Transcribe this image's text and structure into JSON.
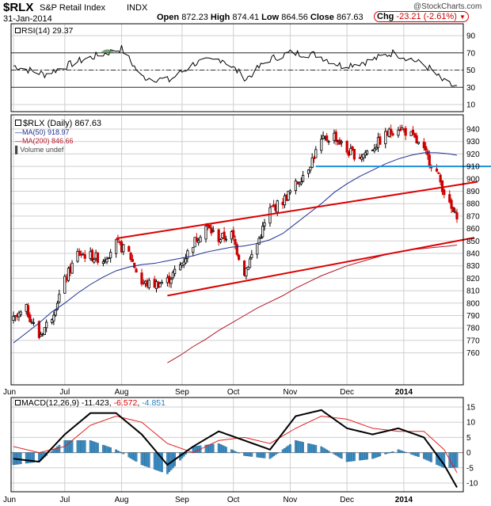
{
  "header": {
    "symbol": "$RLX",
    "name": "S&P Retail Index",
    "exchange": "INDX",
    "date": "31-Jan-2014",
    "open_label": "Open",
    "open": "872.23",
    "high_label": "High",
    "high": "874.41",
    "low_label": "Low",
    "low": "864.56",
    "close_label": "Close",
    "close": "867.63",
    "chg_label": "Chg",
    "chg": "-23.21 (-2.61%)",
    "watermark": "@StockCharts.com"
  },
  "colors": {
    "candle": "#000000",
    "down_candle": "#cc0000",
    "ma50": "#1f2f8f",
    "ma200": "#b0182a",
    "channel": "#dd0000",
    "support": "#1e90d8",
    "macd": "#000000",
    "signal": "#e02020",
    "histogram": "#3f8fc4",
    "grid": "#cfcfcf",
    "rsi_fill": "#5a8a5a"
  },
  "chart_data": [
    {
      "type": "line",
      "panel": "rsi",
      "label": "RSI(14) 29.37",
      "ylim": [
        0,
        100
      ],
      "tick_labels": [
        "90",
        "70",
        "50",
        "30",
        "10"
      ],
      "ticks": [
        90,
        70,
        50,
        30,
        10
      ],
      "reference_lines": [
        70,
        50,
        30
      ],
      "x": [
        "2013-06-03",
        "2013-06-20",
        "2013-07-08",
        "2013-07-24",
        "2013-08-01",
        "2013-08-12",
        "2013-08-27",
        "2013-09-10",
        "2013-09-25",
        "2013-10-08",
        "2013-10-20",
        "2013-11-01",
        "2013-11-15",
        "2013-11-29",
        "2013-12-13",
        "2013-12-27",
        "2014-01-06",
        "2014-01-16",
        "2014-01-24",
        "2014-01-31"
      ],
      "values": [
        55,
        45,
        60,
        70,
        75,
        42,
        38,
        58,
        63,
        40,
        62,
        70,
        68,
        55,
        60,
        70,
        63,
        52,
        36,
        29.37
      ]
    },
    {
      "type": "candlestick",
      "panel": "price",
      "label": "$RLX (Daily) 867.63",
      "ylim": [
        752,
        950
      ],
      "tick_labels": [
        "940",
        "930",
        "920",
        "910",
        "900",
        "890",
        "880",
        "870",
        "860",
        "850",
        "840",
        "830",
        "820",
        "810",
        "800",
        "790",
        "780",
        "770",
        "760"
      ],
      "ticks": [
        940,
        930,
        920,
        910,
        900,
        890,
        880,
        870,
        860,
        850,
        840,
        830,
        820,
        810,
        800,
        790,
        780,
        770,
        760
      ],
      "x_ticks": [
        "Jun",
        "Jul",
        "Aug",
        "Sep",
        "Oct",
        "Nov",
        "Dec",
        "2014"
      ],
      "x": [
        "2013-06-03",
        "2013-06-10",
        "2013-06-17",
        "2013-06-24",
        "2013-07-01",
        "2013-07-08",
        "2013-07-15",
        "2013-07-22",
        "2013-07-29",
        "2013-08-05",
        "2013-08-12",
        "2013-08-19",
        "2013-08-26",
        "2013-09-02",
        "2013-09-09",
        "2013-09-16",
        "2013-09-23",
        "2013-09-30",
        "2013-10-07",
        "2013-10-14",
        "2013-10-21",
        "2013-10-28",
        "2013-11-04",
        "2013-11-11",
        "2013-11-18",
        "2013-11-25",
        "2013-12-02",
        "2013-12-09",
        "2013-12-16",
        "2013-12-23",
        "2013-12-30",
        "2014-01-06",
        "2014-01-13",
        "2014-01-20",
        "2014-01-27",
        "2014-01-31"
      ],
      "close": [
        786,
        795,
        773,
        790,
        818,
        840,
        838,
        835,
        848,
        840,
        816,
        815,
        818,
        830,
        848,
        862,
        852,
        855,
        825,
        848,
        875,
        882,
        895,
        910,
        930,
        935,
        922,
        918,
        925,
        935,
        942,
        935,
        922,
        905,
        878,
        867.63
      ],
      "series": [
        {
          "name": "MA(50) 918.97",
          "last": 918.97
        },
        {
          "name": "MA(200) 846.66",
          "last": 846.66
        },
        {
          "name": "Volume undef"
        }
      ],
      "ma50": [
        768,
        776,
        784,
        793,
        800,
        808,
        815,
        821,
        826,
        829,
        831,
        832,
        834,
        836,
        838,
        841,
        843,
        845,
        846,
        848,
        851,
        856,
        864,
        872,
        880,
        889,
        896,
        902,
        907,
        912,
        916,
        919,
        921,
        921,
        920,
        918.97
      ],
      "ma200": [
        null,
        null,
        null,
        null,
        null,
        null,
        null,
        null,
        null,
        null,
        null,
        null,
        752,
        758,
        765,
        771,
        778,
        784,
        790,
        796,
        801,
        806,
        812,
        817,
        822,
        826,
        830,
        833,
        836,
        839,
        841,
        843,
        844,
        845,
        846,
        846.66
      ],
      "trendlines": [
        {
          "label": "channel upper",
          "from": [
            "2013-07-29",
            852
          ],
          "to": [
            "2014-01-31",
            895
          ]
        },
        {
          "label": "channel lower",
          "from": [
            "2013-08-26",
            806
          ],
          "to": [
            "2014-01-31",
            850
          ]
        },
        {
          "label": "support",
          "from": [
            "2013-11-15",
            910
          ],
          "to": [
            "2014-01-31",
            910
          ]
        }
      ]
    },
    {
      "type": "line",
      "panel": "macd",
      "label": "MACD(12,26,9)",
      "values_text": [
        "-11.423",
        "-6.572",
        "-4.851"
      ],
      "ylim": [
        -12,
        16
      ],
      "tick_labels": [
        "15",
        "10",
        "5",
        "0",
        "-5",
        "-10"
      ],
      "ticks": [
        15,
        10,
        5,
        0,
        -5,
        -10
      ],
      "x_ticks": [
        "Jun",
        "Jul",
        "Aug",
        "Sep",
        "Oct",
        "Nov",
        "Dec",
        "2014"
      ],
      "x": [
        "2013-06-03",
        "2013-06-17",
        "2013-07-01",
        "2013-07-15",
        "2013-07-29",
        "2013-08-12",
        "2013-08-26",
        "2013-09-09",
        "2013-09-23",
        "2013-10-07",
        "2013-10-21",
        "2013-11-04",
        "2013-11-18",
        "2013-12-02",
        "2013-12-16",
        "2013-12-30",
        "2014-01-13",
        "2014-01-24",
        "2014-01-31"
      ],
      "series": [
        {
          "name": "MACD",
          "values": [
            -2,
            -3,
            6,
            13,
            13,
            6,
            -4,
            2,
            7,
            4,
            1,
            12,
            14,
            8,
            6,
            8,
            5,
            -4,
            -11.423
          ]
        },
        {
          "name": "Signal",
          "values": [
            2,
            0,
            2,
            9,
            12,
            10,
            3,
            0,
            4,
            5,
            3,
            8,
            12,
            11,
            8,
            7,
            7,
            1,
            -6.572
          ]
        }
      ]
    }
  ]
}
